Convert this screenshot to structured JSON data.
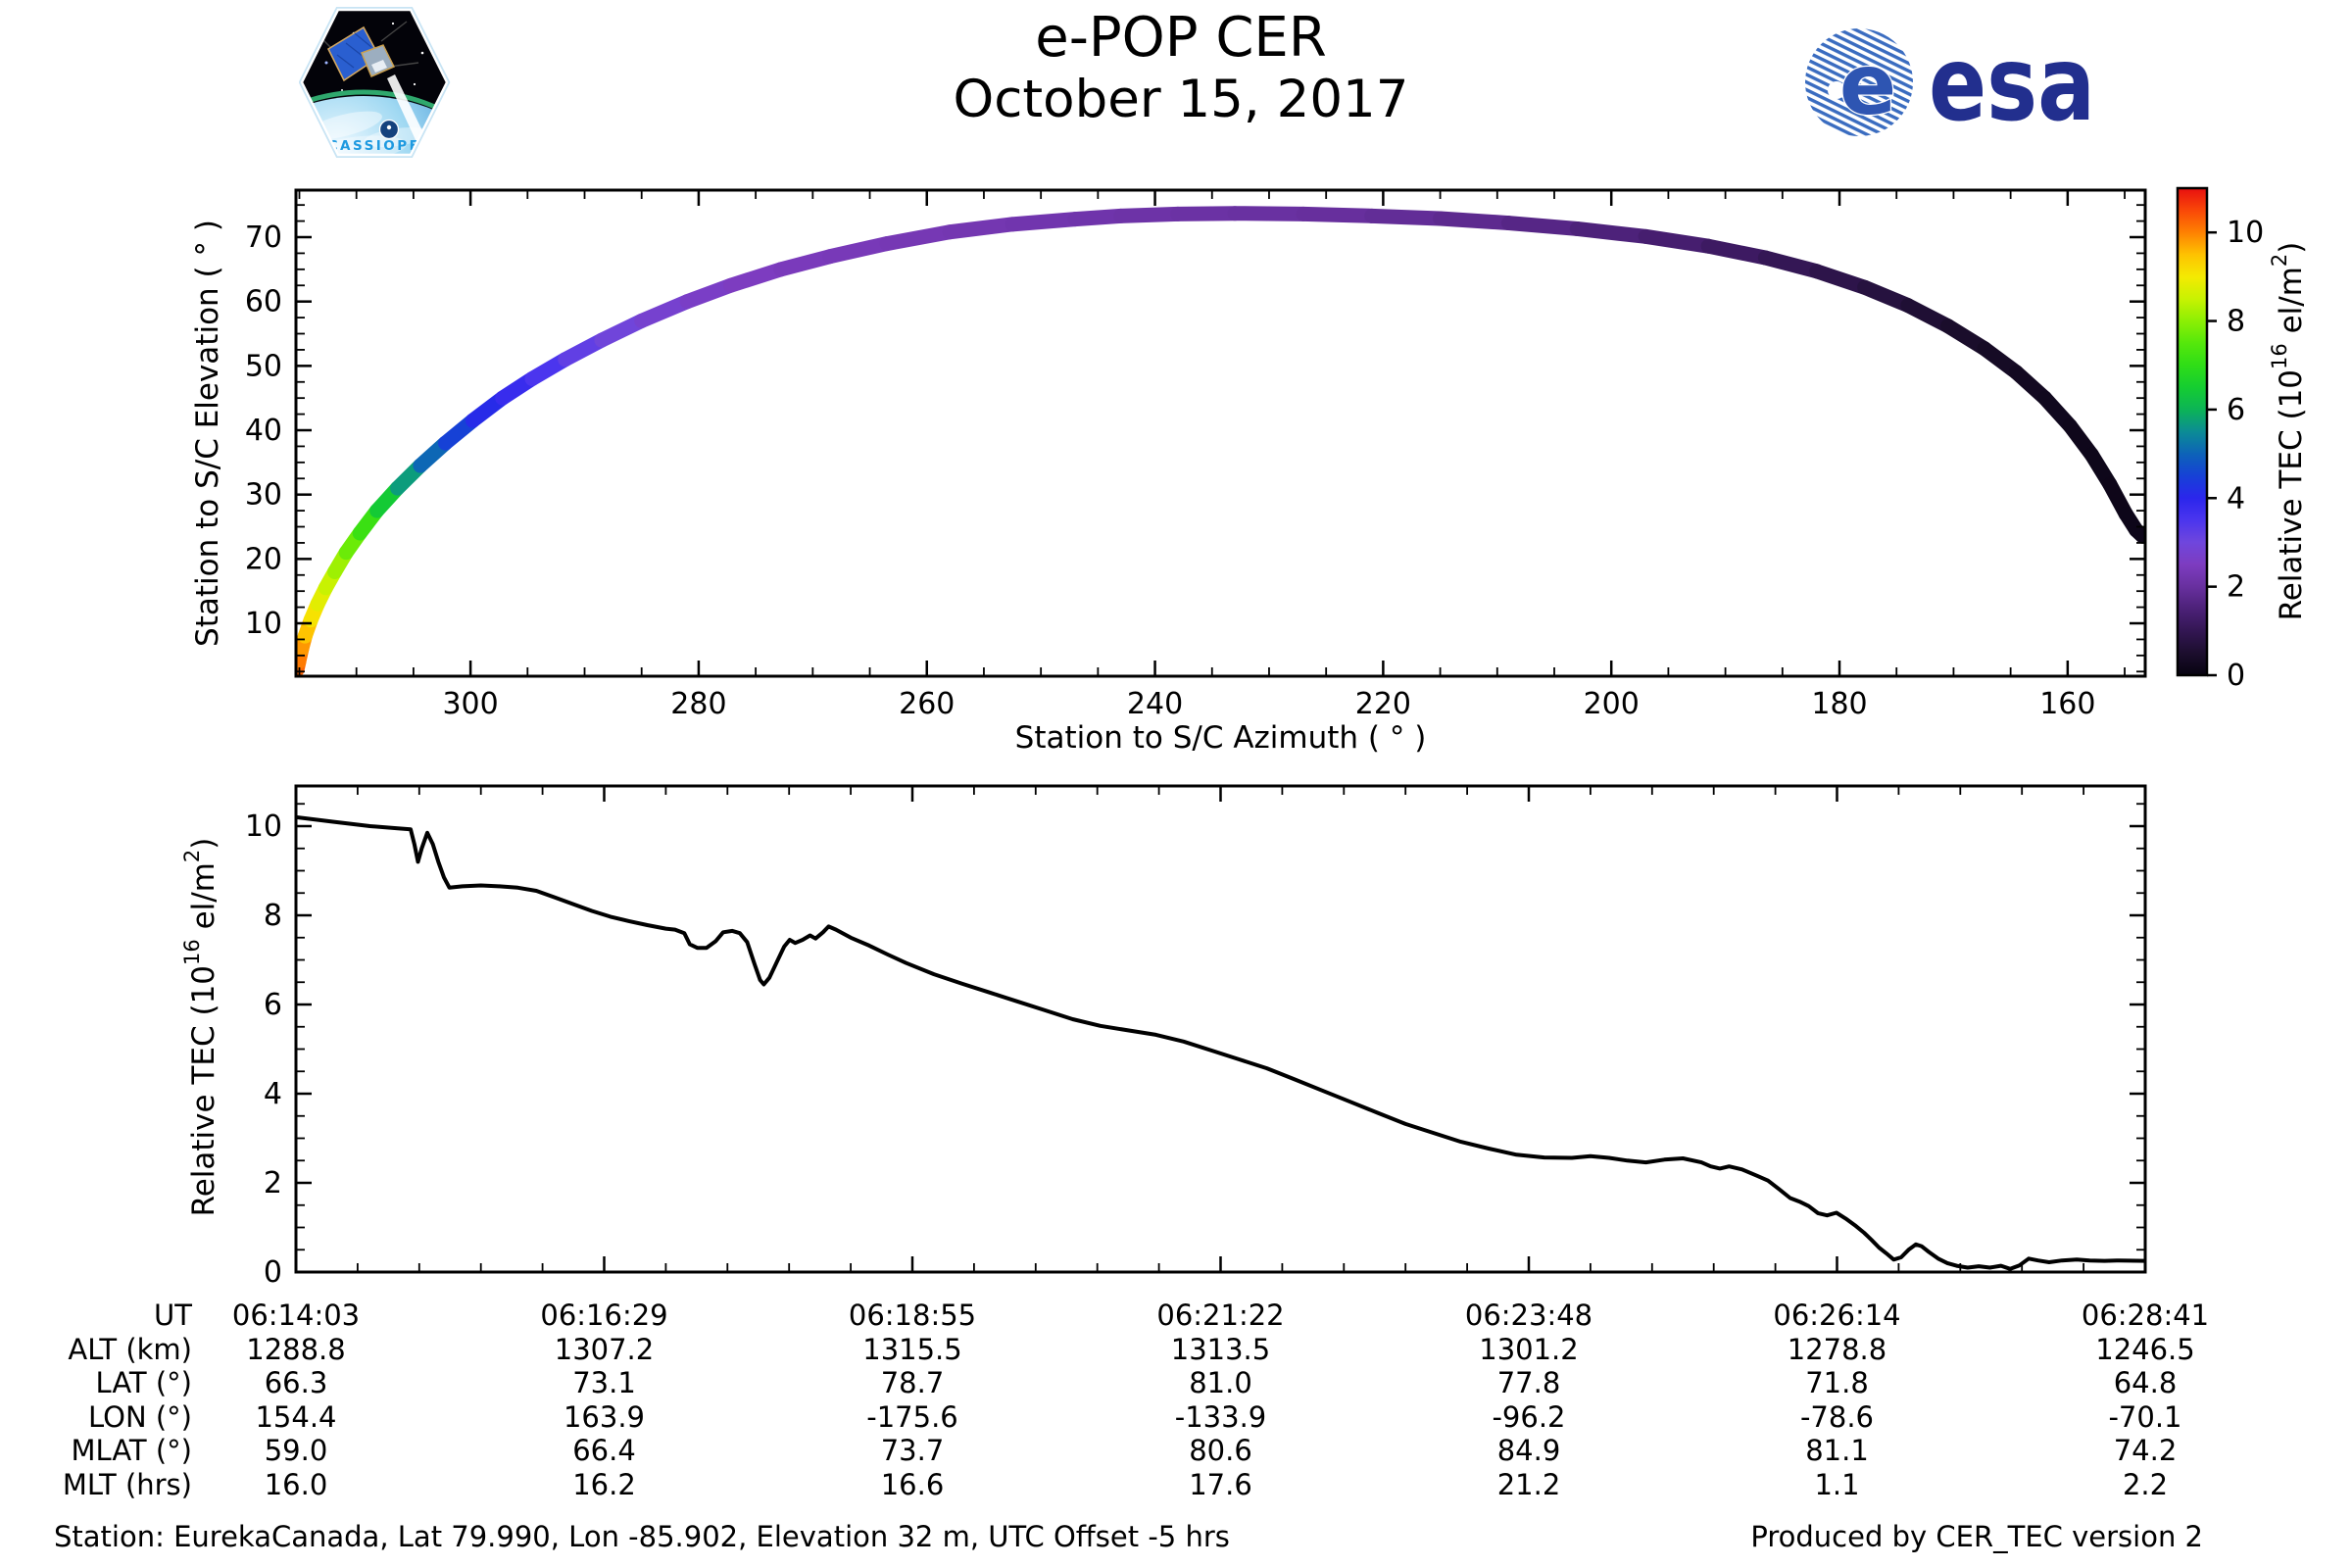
{
  "header": {
    "title_line1": "e-POP CER",
    "title_line2": "October 15, 2017",
    "patch": {
      "text": "CASSIOPE"
    },
    "esa": {
      "wordmark": "esa"
    }
  },
  "chart_data": [
    {
      "type": "scatter",
      "xlabel": "Station to S/C Azimuth ( ° )",
      "ylabel": "Station to S/C Elevation ( ° )",
      "xlim": [
        315.3,
        153.2
      ],
      "ylim": [
        1.8,
        77.3
      ],
      "x_ticks": [
        300,
        280,
        260,
        240,
        220,
        200,
        180,
        160
      ],
      "x_minor_step": 5,
      "y_ticks": [
        10,
        20,
        30,
        40,
        50,
        60,
        70
      ],
      "y_minor_step": 2.5,
      "x_axis_reversed": true,
      "grid": false,
      "colorbar": {
        "label_parts": [
          [
            "Relative TEC (10",
            false
          ],
          [
            "16",
            true
          ],
          [
            " el/m",
            false
          ],
          [
            "2",
            true
          ],
          [
            ")",
            false
          ]
        ],
        "ticks": [
          0,
          2,
          4,
          6,
          8,
          10
        ],
        "vmin": 0,
        "vmax": 11.0,
        "stops": [
          [
            0.0,
            "#070310"
          ],
          [
            0.5,
            "#1c0e2e"
          ],
          [
            1.0,
            "#331653"
          ],
          [
            1.5,
            "#4c2178"
          ],
          [
            2.0,
            "#68309f"
          ],
          [
            2.5,
            "#7d3cc0"
          ],
          [
            3.0,
            "#6f46dd"
          ],
          [
            3.5,
            "#4b35ee"
          ],
          [
            4.0,
            "#2b26ec"
          ],
          [
            4.5,
            "#1641d6"
          ],
          [
            5.0,
            "#0d63b8"
          ],
          [
            5.5,
            "#0c8c95"
          ],
          [
            6.0,
            "#0cb456"
          ],
          [
            6.5,
            "#15cd31"
          ],
          [
            7.0,
            "#2fdd17"
          ],
          [
            7.5,
            "#55e80b"
          ],
          [
            8.0,
            "#8cef04"
          ],
          [
            8.5,
            "#c8f202"
          ],
          [
            9.0,
            "#f4ea02"
          ],
          [
            9.5,
            "#fec201"
          ],
          [
            10.0,
            "#fe8102"
          ],
          [
            10.5,
            "#f94708"
          ],
          [
            11.0,
            "#e81010"
          ]
        ]
      },
      "points_format": [
        "azimuth_deg",
        "elevation_deg",
        "tec"
      ],
      "points": [
        [
          315.2,
          2.8,
          10.35
        ],
        [
          315.05,
          4,
          10.15
        ],
        [
          314.8,
          6,
          9.95
        ],
        [
          314.5,
          8,
          9.7
        ],
        [
          314.0,
          10.5,
          9.25
        ],
        [
          313.4,
          13,
          8.95
        ],
        [
          312.7,
          15.5,
          8.65
        ],
        [
          311.9,
          18,
          8.35
        ],
        [
          310.9,
          21,
          7.95
        ],
        [
          309.7,
          24,
          7.45
        ],
        [
          308.2,
          27.5,
          6.85
        ],
        [
          306.4,
          31,
          6.05
        ],
        [
          304.4,
          34.5,
          5.35
        ],
        [
          302.2,
          38,
          4.75
        ],
        [
          299.8,
          41.5,
          4.25
        ],
        [
          297.2,
          45,
          3.95
        ],
        [
          294.6,
          48,
          3.65
        ],
        [
          291.7,
          51,
          3.35
        ],
        [
          288.5,
          54,
          3.05
        ],
        [
          285.0,
          57,
          2.85
        ],
        [
          281.0,
          60,
          2.65
        ],
        [
          277.2,
          62.5,
          2.55
        ],
        [
          272.8,
          65,
          2.45
        ],
        [
          268.5,
          67,
          2.4
        ],
        [
          263.5,
          69,
          2.35
        ],
        [
          258.0,
          70.8,
          2.3
        ],
        [
          252.5,
          72,
          2.25
        ],
        [
          247.0,
          72.8,
          2.2
        ],
        [
          243,
          73.3,
          2.15
        ],
        [
          238,
          73.6,
          2.1
        ],
        [
          233,
          73.7,
          2.05
        ],
        [
          227,
          73.6,
          2.0
        ],
        [
          221,
          73.3,
          1.95
        ],
        [
          215,
          72.9,
          1.85
        ],
        [
          209,
          72.2,
          1.75
        ],
        [
          203,
          71.3,
          1.6
        ],
        [
          197,
          70.1,
          1.45
        ],
        [
          191.5,
          68.6,
          1.3
        ],
        [
          186.5,
          66.8,
          1.1
        ],
        [
          182,
          64.7,
          0.95
        ],
        [
          177.8,
          62.2,
          0.8
        ],
        [
          174,
          59.4,
          0.65
        ],
        [
          170.5,
          56.2,
          0.5
        ],
        [
          167.3,
          52.7,
          0.4
        ],
        [
          164.5,
          49,
          0.3
        ],
        [
          162,
          45,
          0.25
        ],
        [
          159.8,
          40.7,
          0.2
        ],
        [
          157.9,
          36.2,
          0.18
        ],
        [
          156.3,
          31.6,
          0.16
        ],
        [
          154.9,
          27,
          0.15
        ],
        [
          154.0,
          24.5,
          0.15
        ],
        [
          153.4,
          23.5,
          0.15
        ]
      ]
    },
    {
      "type": "line",
      "ylabel_parts": [
        [
          "Relative TEC (10",
          false
        ],
        [
          "16",
          true
        ],
        [
          " el/m",
          false
        ],
        [
          "2",
          true
        ],
        [
          ")",
          false
        ]
      ],
      "ylim": [
        0,
        10.9
      ],
      "y_ticks": [
        0,
        2,
        4,
        6,
        8,
        10
      ],
      "y_minor_step": 0.5,
      "x_major_count": 7,
      "x_minors_per_interval": 4,
      "line_color": "#000000",
      "points_format": [
        "fraction_of_timespan",
        "tec"
      ],
      "points": [
        [
          0,
          10.2
        ],
        [
          0.02,
          10.1
        ],
        [
          0.04,
          10.0
        ],
        [
          0.055,
          9.95
        ],
        [
          0.062,
          9.93
        ],
        [
          0.064,
          9.6
        ],
        [
          0.066,
          9.2
        ],
        [
          0.068,
          9.5
        ],
        [
          0.071,
          9.85
        ],
        [
          0.074,
          9.6
        ],
        [
          0.077,
          9.2
        ],
        [
          0.08,
          8.85
        ],
        [
          0.083,
          8.62
        ],
        [
          0.09,
          8.65
        ],
        [
          0.1,
          8.67
        ],
        [
          0.11,
          8.65
        ],
        [
          0.12,
          8.62
        ],
        [
          0.13,
          8.55
        ],
        [
          0.14,
          8.4
        ],
        [
          0.15,
          8.25
        ],
        [
          0.16,
          8.1
        ],
        [
          0.17,
          7.97
        ],
        [
          0.18,
          7.87
        ],
        [
          0.19,
          7.78
        ],
        [
          0.2,
          7.7
        ],
        [
          0.205,
          7.68
        ],
        [
          0.21,
          7.6
        ],
        [
          0.213,
          7.35
        ],
        [
          0.217,
          7.27
        ],
        [
          0.222,
          7.27
        ],
        [
          0.227,
          7.42
        ],
        [
          0.231,
          7.62
        ],
        [
          0.236,
          7.65
        ],
        [
          0.24,
          7.6
        ],
        [
          0.244,
          7.4
        ],
        [
          0.248,
          6.9
        ],
        [
          0.251,
          6.55
        ],
        [
          0.253,
          6.45
        ],
        [
          0.256,
          6.6
        ],
        [
          0.26,
          6.95
        ],
        [
          0.264,
          7.3
        ],
        [
          0.267,
          7.45
        ],
        [
          0.27,
          7.38
        ],
        [
          0.274,
          7.45
        ],
        [
          0.278,
          7.55
        ],
        [
          0.281,
          7.48
        ],
        [
          0.285,
          7.62
        ],
        [
          0.288,
          7.75
        ],
        [
          0.292,
          7.68
        ],
        [
          0.3,
          7.5
        ],
        [
          0.31,
          7.32
        ],
        [
          0.32,
          7.12
        ],
        [
          0.33,
          6.93
        ],
        [
          0.345,
          6.68
        ],
        [
          0.36,
          6.47
        ],
        [
          0.375,
          6.27
        ],
        [
          0.39,
          6.07
        ],
        [
          0.405,
          5.87
        ],
        [
          0.42,
          5.67
        ],
        [
          0.435,
          5.52
        ],
        [
          0.45,
          5.42
        ],
        [
          0.465,
          5.32
        ],
        [
          0.48,
          5.17
        ],
        [
          0.495,
          4.97
        ],
        [
          0.51,
          4.77
        ],
        [
          0.525,
          4.57
        ],
        [
          0.54,
          4.32
        ],
        [
          0.555,
          4.07
        ],
        [
          0.57,
          3.82
        ],
        [
          0.585,
          3.57
        ],
        [
          0.6,
          3.32
        ],
        [
          0.615,
          3.12
        ],
        [
          0.63,
          2.92
        ],
        [
          0.645,
          2.77
        ],
        [
          0.66,
          2.63
        ],
        [
          0.675,
          2.57
        ],
        [
          0.69,
          2.56
        ],
        [
          0.7,
          2.6
        ],
        [
          0.71,
          2.56
        ],
        [
          0.72,
          2.5
        ],
        [
          0.73,
          2.46
        ],
        [
          0.74,
          2.52
        ],
        [
          0.75,
          2.55
        ],
        [
          0.76,
          2.46
        ],
        [
          0.765,
          2.37
        ],
        [
          0.77,
          2.32
        ],
        [
          0.775,
          2.37
        ],
        [
          0.782,
          2.3
        ],
        [
          0.79,
          2.16
        ],
        [
          0.796,
          2.05
        ],
        [
          0.802,
          1.86
        ],
        [
          0.808,
          1.66
        ],
        [
          0.813,
          1.58
        ],
        [
          0.818,
          1.48
        ],
        [
          0.823,
          1.32
        ],
        [
          0.828,
          1.27
        ],
        [
          0.833,
          1.33
        ],
        [
          0.838,
          1.2
        ],
        [
          0.843,
          1.05
        ],
        [
          0.848,
          0.88
        ],
        [
          0.852,
          0.72
        ],
        [
          0.856,
          0.55
        ],
        [
          0.86,
          0.42
        ],
        [
          0.864,
          0.28
        ],
        [
          0.868,
          0.33
        ],
        [
          0.872,
          0.5
        ],
        [
          0.876,
          0.62
        ],
        [
          0.879,
          0.58
        ],
        [
          0.883,
          0.45
        ],
        [
          0.888,
          0.3
        ],
        [
          0.893,
          0.2
        ],
        [
          0.898,
          0.14
        ],
        [
          0.904,
          0.1
        ],
        [
          0.91,
          0.13
        ],
        [
          0.916,
          0.1
        ],
        [
          0.922,
          0.14
        ],
        [
          0.927,
          0.07
        ],
        [
          0.932,
          0.15
        ],
        [
          0.937,
          0.3
        ],
        [
          0.942,
          0.26
        ],
        [
          0.948,
          0.22
        ],
        [
          0.955,
          0.26
        ],
        [
          0.963,
          0.28
        ],
        [
          0.97,
          0.26
        ],
        [
          0.978,
          0.25
        ],
        [
          0.986,
          0.26
        ],
        [
          1.0,
          0.25
        ]
      ]
    }
  ],
  "table": {
    "row_labels": [
      "UT",
      "ALT (km)",
      "LAT (°)",
      "LON (°)",
      "MLAT (°)",
      "MLT (hrs)"
    ],
    "rows": [
      [
        "06:14:03",
        "06:16:29",
        "06:18:55",
        "06:21:22",
        "06:23:48",
        "06:26:14",
        "06:28:41"
      ],
      [
        "1288.8",
        "1307.2",
        "1315.5",
        "1313.5",
        "1301.2",
        "1278.8",
        "1246.5"
      ],
      [
        "66.3",
        "73.1",
        "78.7",
        "81.0",
        "77.8",
        "71.8",
        "64.8"
      ],
      [
        "154.4",
        "163.9",
        "-175.6",
        "-133.9",
        "-96.2",
        "-78.6",
        "-70.1"
      ],
      [
        "59.0",
        "66.4",
        "73.7",
        "80.6",
        "84.9",
        "81.1",
        "74.2"
      ],
      [
        "16.0",
        "16.2",
        "16.6",
        "17.6",
        "21.2",
        "1.1",
        "2.2"
      ]
    ]
  },
  "footer": {
    "left": "Station: EurekaCanada, Lat 79.990, Lon -85.902, Elevation 32 m, UTC Offset -5 hrs",
    "right": "Produced by CER_TEC version 2"
  }
}
